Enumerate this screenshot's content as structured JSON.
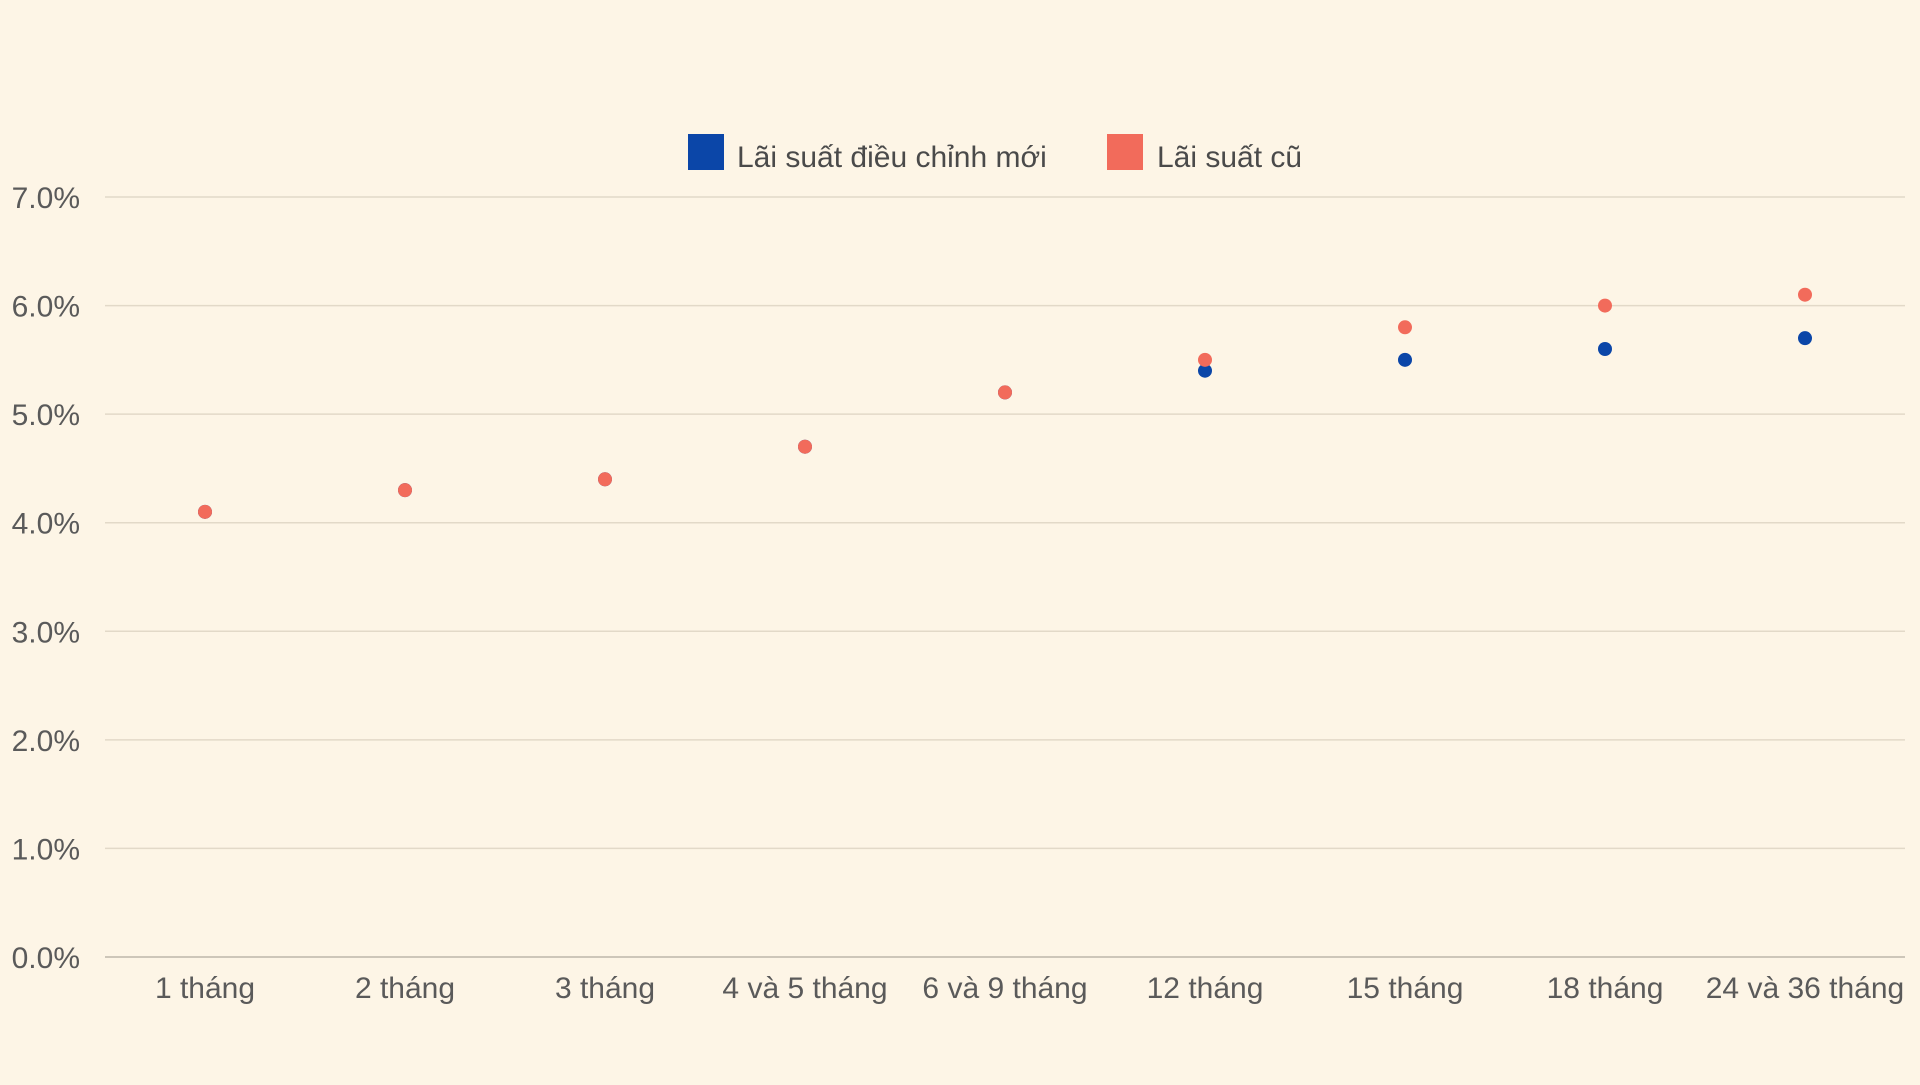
{
  "chart_data": {
    "type": "scatter",
    "title": "",
    "xlabel": "",
    "ylabel": "",
    "categories": [
      "1 tháng",
      "2 tháng",
      "3 tháng",
      "4 và 5 tháng",
      "6 và 9 tháng",
      "12 tháng",
      "15 tháng",
      "18 tháng",
      "24 và 36 tháng"
    ],
    "ylim": [
      0,
      7
    ],
    "y_ticks": [
      "0.0%",
      "1.0%",
      "2.0%",
      "3.0%",
      "4.0%",
      "5.0%",
      "6.0%",
      "7.0%"
    ],
    "y_tick_values": [
      0,
      1,
      2,
      3,
      4,
      5,
      6,
      7
    ],
    "grid": true,
    "legend_position": "top-center",
    "series": [
      {
        "name": "Lãi suất điều chỉnh mới",
        "color": "#0b46a8",
        "values": [
          4.1,
          4.3,
          4.4,
          4.7,
          5.2,
          5.4,
          5.5,
          5.6,
          5.7
        ]
      },
      {
        "name": "Lãi suất cũ",
        "color": "#f26b5b",
        "values": [
          4.1,
          4.3,
          4.4,
          4.7,
          5.2,
          5.5,
          5.8,
          6.0,
          6.1
        ]
      }
    ]
  }
}
